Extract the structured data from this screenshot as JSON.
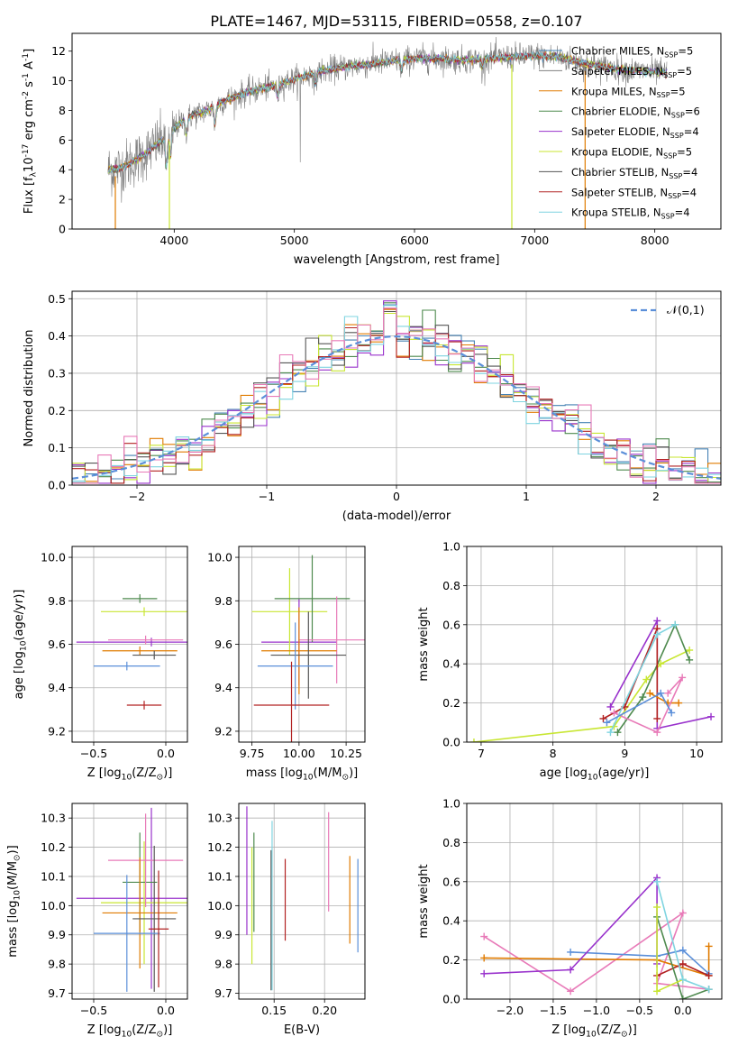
{
  "figure_title": "PLATE=1467, MJD=53115, FIBERID=0558, z=0.107",
  "colors": {
    "chabrier_miles": "#4682b4",
    "salpeter_miles": "#808080",
    "kroupa_miles": "#e07b00",
    "chabrier_elodie": "#4e8a4e",
    "salpeter_elodie": "#9932cc",
    "kroupa_elodie": "#c8e632",
    "chabrier_stelib": "#555555",
    "salpeter_stelib": "#b22222",
    "kroupa_stelib": "#7fd4e0",
    "gaussian": "#5b8fd9",
    "pink": "#e87ab8",
    "blue": "#5b8fd9"
  },
  "chart_data": [
    {
      "type": "line",
      "panel": "spectrum",
      "xlabel": "wavelength [Angstrom, rest frame]",
      "ylabel": "Flux [f$_\\lambda$10$^{-17}$ erg cm$^{-2}$ s$^{-1}$ A$^{-1}$]",
      "xlim": [
        3150,
        8550
      ],
      "ylim": [
        0,
        13.2
      ],
      "xticks": [
        "4000",
        "5000",
        "6000",
        "7000",
        "8000"
      ],
      "yticks": [
        "0",
        "2",
        "4",
        "6",
        "8",
        "10",
        "12"
      ],
      "continuum": [
        [
          3450,
          4.0
        ],
        [
          3550,
          4.1
        ],
        [
          3650,
          4.5
        ],
        [
          3750,
          5.0
        ],
        [
          3850,
          5.7
        ],
        [
          3950,
          6.3
        ],
        [
          4000,
          6.8
        ],
        [
          4100,
          7.5
        ],
        [
          4200,
          7.8
        ],
        [
          4300,
          8.1
        ],
        [
          4400,
          8.6
        ],
        [
          4600,
          9.2
        ],
        [
          4800,
          9.6
        ],
        [
          5000,
          10.1
        ],
        [
          5200,
          10.6
        ],
        [
          5400,
          10.9
        ],
        [
          5600,
          11.1
        ],
        [
          5800,
          11.3
        ],
        [
          6000,
          11.5
        ],
        [
          6200,
          11.5
        ],
        [
          6400,
          11.4
        ],
        [
          6600,
          11.5
        ],
        [
          6800,
          11.6
        ],
        [
          7000,
          11.7
        ],
        [
          7200,
          11.6
        ],
        [
          7400,
          11.2
        ],
        [
          7600,
          10.9
        ],
        [
          7800,
          10.7
        ],
        [
          8000,
          10.6
        ],
        [
          8100,
          10.5
        ]
      ],
      "legend": [
        {
          "label": "Chabrier MILES, N$_{SSP}$=5",
          "color_key": "chabrier_miles"
        },
        {
          "label": "Salpeter MILES, N$_{SSP}$=5",
          "color_key": "salpeter_miles"
        },
        {
          "label": "Kroupa MILES, N$_{SSP}$=5",
          "color_key": "kroupa_miles"
        },
        {
          "label": "Chabrier ELODIE, N$_{SSP}$=6",
          "color_key": "chabrier_elodie"
        },
        {
          "label": "Salpeter ELODIE, N$_{SSP}$=4",
          "color_key": "salpeter_elodie"
        },
        {
          "label": "Kroupa ELODIE, N$_{SSP}$=5",
          "color_key": "kroupa_elodie"
        },
        {
          "label": "Chabrier STELIB, N$_{SSP}$=4",
          "color_key": "chabrier_stelib"
        },
        {
          "label": "Salpeter STELIB, N$_{SSP}$=4",
          "color_key": "salpeter_stelib"
        },
        {
          "label": "Kroupa STELIB, N$_{SSP}$=4",
          "color_key": "kroupa_stelib"
        }
      ]
    },
    {
      "type": "histogram",
      "panel": "residuals",
      "xlabel": "(data-model)/error",
      "ylabel": "Normed distribution",
      "xlim": [
        -2.5,
        2.5
      ],
      "ylim": [
        0,
        0.52
      ],
      "xticks": [
        "−2",
        "−1",
        "0",
        "1",
        "2"
      ],
      "yticks": [
        "0.0",
        "0.1",
        "0.2",
        "0.3",
        "0.4",
        "0.5"
      ],
      "legend_label": "$\\mathcal{N}(0,1)$",
      "bin_width": 0.1
    },
    {
      "type": "scatter",
      "panel": "age_vs_Z",
      "xlabel": "Z [log$_{10}$(Z/Z$_\\odot$)]",
      "ylabel": "age  [log$_{10}$(age/yr)]",
      "xlim": [
        -0.65,
        0.15
      ],
      "ylim": [
        9.15,
        10.05
      ],
      "xticks": [
        "−0.5",
        "0.0"
      ],
      "yticks": [
        "9.2",
        "9.4",
        "9.6",
        "9.8",
        "10.0"
      ],
      "points": [
        {
          "c": "salpeter_elodie",
          "x": -0.1,
          "xe": 0.52,
          "y": 9.61,
          "ye": 0.02
        },
        {
          "c": "kroupa_elodie",
          "x": -0.15,
          "xe": 0.3,
          "y": 9.75,
          "ye": 0.02
        },
        {
          "c": "chabrier_elodie",
          "x": -0.18,
          "xe": 0.12,
          "y": 9.81,
          "ye": 0.02
        },
        {
          "c": "pink",
          "x": -0.14,
          "xe": 0.26,
          "y": 9.62,
          "ye": 0.02
        },
        {
          "c": "kroupa_miles",
          "x": -0.18,
          "xe": 0.26,
          "y": 9.57,
          "ye": 0.02
        },
        {
          "c": "chabrier_stelib",
          "x": -0.08,
          "xe": 0.15,
          "y": 9.55,
          "ye": 0.02
        },
        {
          "c": "blue",
          "x": -0.27,
          "xe": 0.23,
          "y": 9.5,
          "ye": 0.02
        },
        {
          "c": "salpeter_stelib",
          "x": -0.15,
          "xe": 0.12,
          "y": 9.32,
          "ye": 0.02
        }
      ]
    },
    {
      "type": "scatter",
      "panel": "age_vs_mass",
      "xlabel": "mass [log$_{10}$(M/M$_\\odot$)]",
      "ylabel": "",
      "xlim": [
        9.68,
        10.35
      ],
      "ylim": [
        9.15,
        10.05
      ],
      "xticks": [
        "9.75",
        "10.00",
        "10.25"
      ],
      "yticks": [
        "9.2",
        "9.4",
        "9.6",
        "9.8",
        "10.0"
      ]
    },
    {
      "type": "line",
      "panel": "massweight_vs_age",
      "xlabel": "age  [log$_{10}$(age/yr)]",
      "ylabel": "mass weight",
      "xlim": [
        6.8,
        10.35
      ],
      "ylim": [
        0,
        1.0
      ],
      "xticks": [
        "7",
        "8",
        "9",
        "10"
      ],
      "yticks": [
        "0.0",
        "0.2",
        "0.4",
        "0.6",
        "0.8",
        "1.0"
      ],
      "series": [
        {
          "c": "salpeter_elodie",
          "pts": [
            [
              8.8,
              0.18
            ],
            [
              9.45,
              0.62
            ],
            [
              9.45,
              0.07
            ],
            [
              10.2,
              0.13
            ]
          ]
        },
        {
          "c": "kroupa_elodie",
          "pts": [
            [
              6.9,
              0.0
            ],
            [
              8.85,
              0.08
            ],
            [
              9.3,
              0.32
            ],
            [
              9.5,
              0.4
            ],
            [
              9.9,
              0.47
            ]
          ]
        },
        {
          "c": "chabrier_elodie",
          "pts": [
            [
              8.9,
              0.05
            ],
            [
              9.25,
              0.23
            ],
            [
              9.7,
              0.6
            ],
            [
              9.9,
              0.42
            ]
          ]
        },
        {
          "c": "salpeter_stelib",
          "pts": [
            [
              8.7,
              0.12
            ],
            [
              9.0,
              0.18
            ],
            [
              9.45,
              0.58
            ],
            [
              9.45,
              0.12
            ]
          ]
        },
        {
          "c": "kroupa_miles",
          "pts": [
            [
              9.35,
              0.25
            ],
            [
              9.6,
              0.2
            ],
            [
              9.75,
              0.2
            ]
          ]
        },
        {
          "c": "pink",
          "pts": [
            [
              8.85,
              0.15
            ],
            [
              9.45,
              0.05
            ],
            [
              9.8,
              0.33
            ],
            [
              9.6,
              0.25
            ]
          ]
        },
        {
          "c": "kroupa_stelib",
          "pts": [
            [
              8.8,
              0.05
            ],
            [
              9.45,
              0.55
            ],
            [
              9.7,
              0.6
            ]
          ]
        },
        {
          "c": "blue",
          "pts": [
            [
              8.75,
              0.1
            ],
            [
              9.5,
              0.25
            ],
            [
              9.65,
              0.15
            ]
          ]
        }
      ]
    },
    {
      "type": "scatter",
      "panel": "mass_vs_Z",
      "xlabel": "Z [log$_{10}$(Z/Z$_\\odot$)]",
      "ylabel": "mass [log$_{10}$(M/M$_\\odot$)]",
      "xlim": [
        -0.65,
        0.15
      ],
      "ylim": [
        9.68,
        10.35
      ],
      "xticks": [
        "−0.5",
        "0.0"
      ],
      "yticks": [
        "9.7",
        "9.8",
        "9.9",
        "10.0",
        "10.1",
        "10.2",
        "10.3"
      ],
      "points": [
        {
          "c": "salpeter_elodie",
          "x": -0.1,
          "xe": 0.52,
          "y": 10.025,
          "ye": 0.31
        },
        {
          "c": "kroupa_elodie",
          "x": -0.15,
          "xe": 0.3,
          "y": 10.01,
          "ye": 0.21
        },
        {
          "c": "chabrier_elodie",
          "x": -0.18,
          "xe": 0.12,
          "y": 10.08,
          "ye": 0.17
        },
        {
          "c": "pink",
          "x": -0.14,
          "xe": 0.26,
          "y": 10.155,
          "ye": 0.16
        },
        {
          "c": "kroupa_miles",
          "x": -0.18,
          "xe": 0.26,
          "y": 9.975,
          "ye": 0.19
        },
        {
          "c": "chabrier_stelib",
          "x": -0.08,
          "xe": 0.15,
          "y": 9.955,
          "ye": 0.25
        },
        {
          "c": "blue",
          "x": -0.27,
          "xe": 0.23,
          "y": 9.905,
          "ye": 0.0
        },
        {
          "c": "salpeter_stelib",
          "x": -0.05,
          "xe": 0.07,
          "y": 9.92,
          "ye": 0.0
        }
      ]
    },
    {
      "type": "scatter",
      "panel": "mass_vs_ebv",
      "xlabel": "E(B-V)",
      "ylabel": "",
      "xlim": [
        0.115,
        0.24
      ],
      "ylim": [
        9.68,
        10.35
      ],
      "xticks": [
        "0.15",
        "0.20"
      ],
      "yticks": [
        "9.7",
        "9.8",
        "9.9",
        "10.0",
        "10.1",
        "10.2",
        "10.3"
      ],
      "points": [
        {
          "c": "salpeter_elodie",
          "x": 0.123,
          "y": 10.12,
          "ye": 0.22
        },
        {
          "c": "kroupa_elodie",
          "x": 0.128,
          "y": 10.0,
          "ye": 0.2
        },
        {
          "c": "chabrier_elodie",
          "x": 0.13,
          "y": 10.08,
          "ye": 0.17
        },
        {
          "c": "chabrier_stelib",
          "x": 0.147,
          "y": 9.95,
          "ye": 0.24
        },
        {
          "c": "kroupa_stelib",
          "x": 0.148,
          "y": 10.0,
          "ye": 0.29
        },
        {
          "c": "salpeter_stelib",
          "x": 0.161,
          "y": 10.02,
          "ye": 0.14
        },
        {
          "c": "pink",
          "x": 0.204,
          "y": 10.15,
          "ye": 0.17
        },
        {
          "c": "kroupa_miles",
          "x": 0.225,
          "y": 10.02,
          "ye": 0.15
        },
        {
          "c": "blue",
          "x": 0.233,
          "y": 10.0,
          "ye": 0.16
        }
      ]
    },
    {
      "type": "line",
      "panel": "massweight_vs_Z",
      "xlabel": "Z [log$_{10}$(Z/Z$_\\odot$)]",
      "ylabel": "mass weight",
      "xlim": [
        -2.5,
        0.45
      ],
      "ylim": [
        0,
        1.0
      ],
      "xticks": [
        "−2.0",
        "−1.5",
        "−1.0",
        "−0.5",
        "0.0"
      ],
      "yticks": [
        "0.0",
        "0.2",
        "0.4",
        "0.6",
        "0.8",
        "1.0"
      ],
      "series": [
        {
          "c": "pink",
          "pts": [
            [
              -2.3,
              0.32
            ],
            [
              -1.3,
              0.04
            ],
            [
              0.0,
              0.44
            ],
            [
              -0.3,
              0.08
            ],
            [
              0.3,
              0.05
            ]
          ]
        },
        {
          "c": "kroupa_miles",
          "pts": [
            [
              -2.3,
              0.21
            ],
            [
              -0.3,
              0.2
            ],
            [
              0.3,
              0.12
            ],
            [
              0.3,
              0.27
            ]
          ]
        },
        {
          "c": "blue",
          "pts": [
            [
              -1.3,
              0.24
            ],
            [
              -0.3,
              0.22
            ],
            [
              0.0,
              0.25
            ],
            [
              0.3,
              0.13
            ]
          ]
        },
        {
          "c": "salpeter_elodie",
          "pts": [
            [
              -2.3,
              0.13
            ],
            [
              -1.3,
              0.15
            ],
            [
              -0.3,
              0.62
            ],
            [
              -0.3,
              0.18
            ]
          ]
        },
        {
          "c": "salpeter_stelib",
          "pts": [
            [
              -0.3,
              0.12
            ],
            [
              0.0,
              0.18
            ],
            [
              0.3,
              0.12
            ]
          ]
        },
        {
          "c": "chabrier_elodie",
          "pts": [
            [
              -0.3,
              0.42
            ],
            [
              0.0,
              0.0
            ],
            [
              0.3,
              0.05
            ]
          ]
        },
        {
          "c": "kroupa_elodie",
          "pts": [
            [
              -0.3,
              0.47
            ],
            [
              -0.3,
              0.04
            ],
            [
              0.0,
              0.1
            ]
          ]
        },
        {
          "c": "kroupa_stelib",
          "pts": [
            [
              -0.3,
              0.6
            ],
            [
              0.0,
              0.1
            ],
            [
              0.3,
              0.05
            ]
          ]
        }
      ]
    }
  ]
}
